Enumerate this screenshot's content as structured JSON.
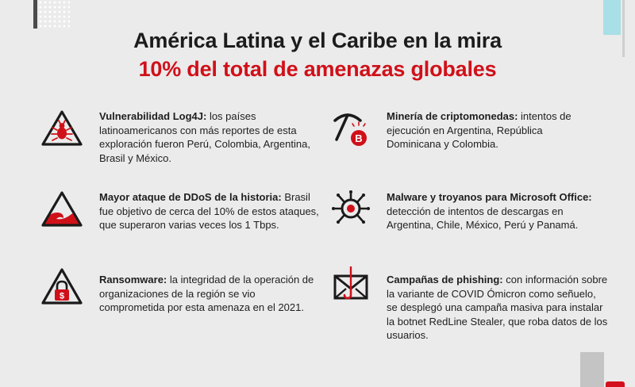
{
  "header": {
    "title": "América Latina y el Caribe en la mira",
    "subtitle": "10% del total de amenazas globales"
  },
  "colors": {
    "accent": "#d01019",
    "text": "#1e1e1e",
    "background": "#ebebeb"
  },
  "items": [
    {
      "icon": "warning-bug-icon",
      "heading": "Vulnerabilidad Log4J:",
      "body": " los países latinoamericanos con más reportes de esta exploración fueron Perú, Colombia, Argentina, Brasil y México."
    },
    {
      "icon": "pickaxe-bitcoin-icon",
      "heading": "Minería de criptomonedas:",
      "body": " intentos de ejecución en Argentina, República Dominicana y Colombia."
    },
    {
      "icon": "warning-wave-icon",
      "heading": "Mayor ataque de DDoS de la historia:",
      "body": " Brasil fue objetivo de cerca del 10% de estos ataques, que superaron varias veces los 1 Tbps."
    },
    {
      "icon": "malware-virus-icon",
      "heading": "Malware y troyanos para Microsoft Office:",
      "body": " detección de intentos de descargas en Argentina, Chile, México, Perú y Panamá."
    },
    {
      "icon": "padlock-dollar-icon",
      "heading": "Ransomware:",
      "body": " la integridad de la operación de organizaciones de la región se vio comprometida por esta amenaza en el 2021."
    },
    {
      "icon": "phishing-envelope-icon",
      "heading": "Campañas de phishing:",
      "body": " con información sobre la variante de COVID Ómicron como señuelo, se desplegó una campaña masiva para instalar la botnet RedLine Stealer, que roba datos de los usuarios."
    }
  ]
}
